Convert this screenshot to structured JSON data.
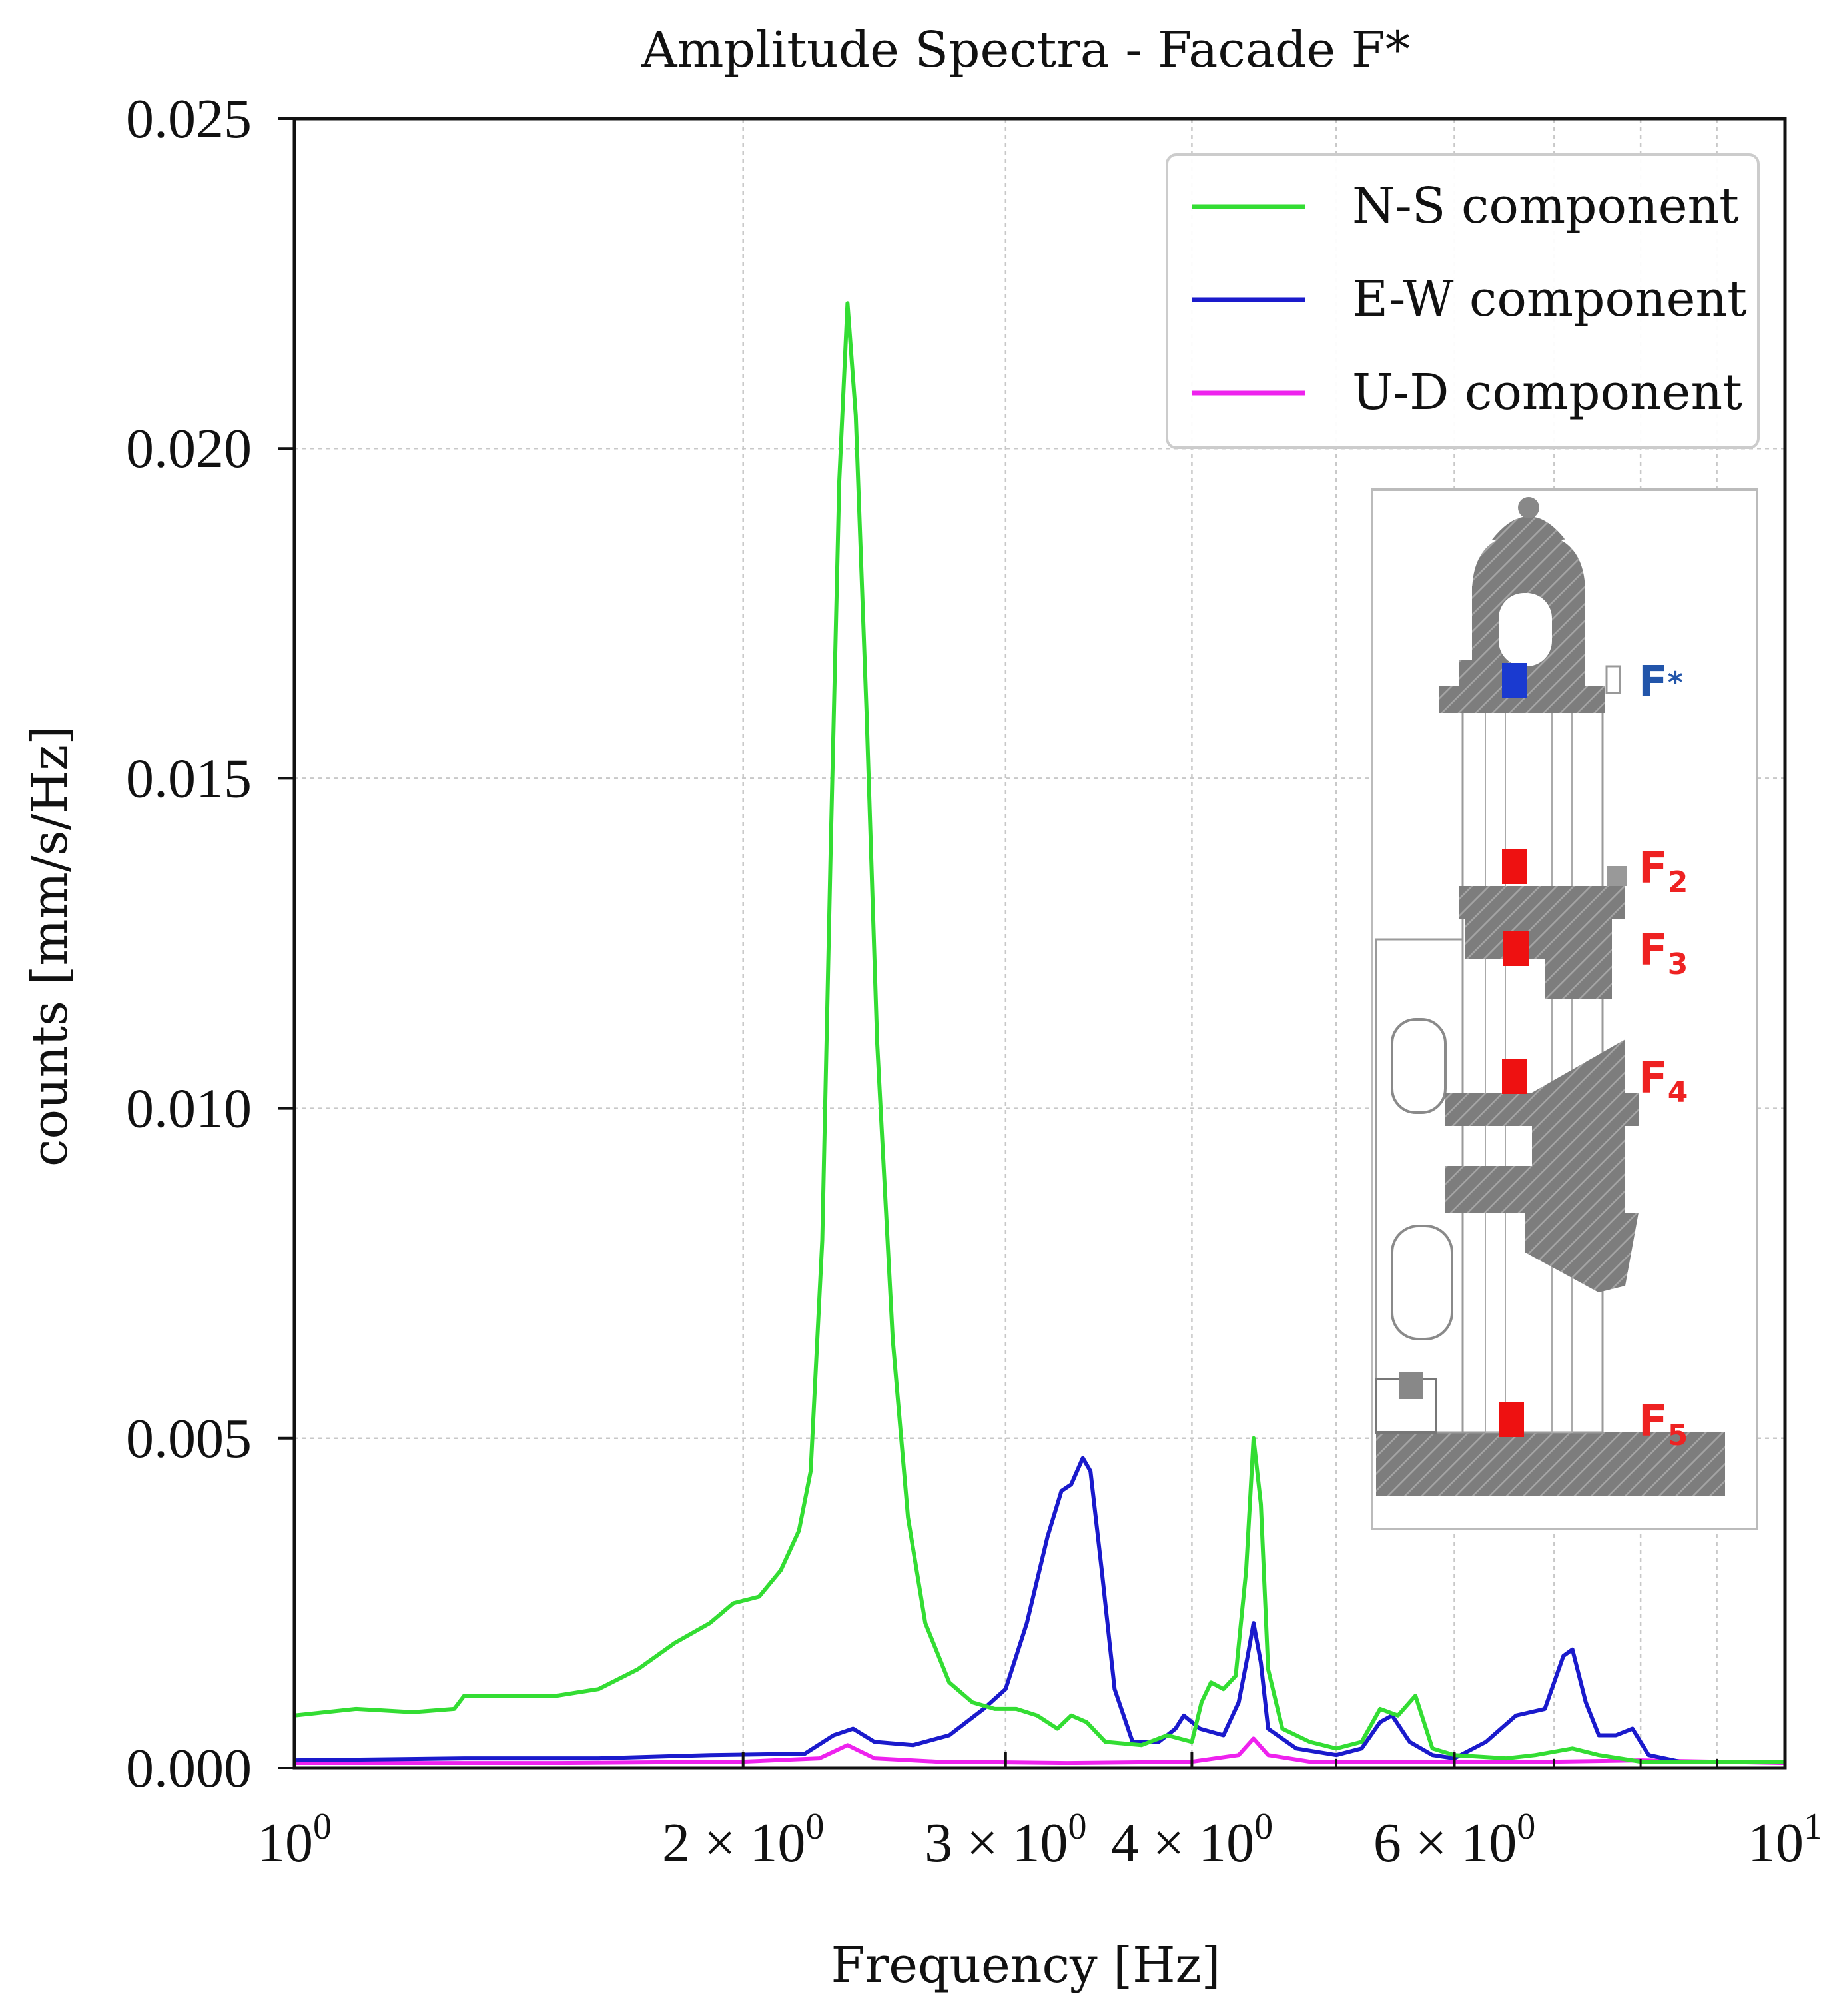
{
  "chart_data": {
    "type": "line",
    "title": "Amplitude Spectra - Facade F*",
    "xlabel": "Frequency [Hz]",
    "ylabel": "counts [mm/s/Hz]",
    "xscale": "log",
    "xlim": [
      1,
      10
    ],
    "ylim": [
      0,
      0.025
    ],
    "grid": true,
    "legend_position": "top-right",
    "x_ticks": [
      {
        "value": 1,
        "base": "10",
        "exp": "0",
        "mant": ""
      },
      {
        "value": 2,
        "base": "10",
        "exp": "0",
        "mant": "2 × "
      },
      {
        "value": 3,
        "base": "10",
        "exp": "0",
        "mant": "3 × "
      },
      {
        "value": 4,
        "base": "10",
        "exp": "0",
        "mant": "4 × "
      },
      {
        "value": 6,
        "base": "10",
        "exp": "0",
        "mant": "6 × "
      },
      {
        "value": 10,
        "base": "10",
        "exp": "1",
        "mant": ""
      }
    ],
    "x_minor_gridlines": [
      5,
      7,
      8,
      9
    ],
    "y_ticks": [
      {
        "value": 0.0,
        "label": "0.000"
      },
      {
        "value": 0.005,
        "label": "0.005"
      },
      {
        "value": 0.01,
        "label": "0.010"
      },
      {
        "value": 0.015,
        "label": "0.015"
      },
      {
        "value": 0.02,
        "label": "0.020"
      },
      {
        "value": 0.025,
        "label": "0.025"
      }
    ],
    "series": [
      {
        "name": "N-S component",
        "color": "#33dd33",
        "points": [
          [
            1.0,
            0.0008
          ],
          [
            1.1,
            0.0009
          ],
          [
            1.2,
            0.00085
          ],
          [
            1.28,
            0.0009
          ],
          [
            1.3,
            0.0011
          ],
          [
            1.4,
            0.0011
          ],
          [
            1.5,
            0.0011
          ],
          [
            1.6,
            0.0012
          ],
          [
            1.7,
            0.0015
          ],
          [
            1.8,
            0.0019
          ],
          [
            1.9,
            0.0022
          ],
          [
            1.97,
            0.0025
          ],
          [
            2.05,
            0.0026
          ],
          [
            2.12,
            0.003
          ],
          [
            2.18,
            0.0036
          ],
          [
            2.22,
            0.0045
          ],
          [
            2.26,
            0.008
          ],
          [
            2.29,
            0.014
          ],
          [
            2.32,
            0.0195
          ],
          [
            2.35,
            0.0222
          ],
          [
            2.38,
            0.0205
          ],
          [
            2.42,
            0.016
          ],
          [
            2.46,
            0.011
          ],
          [
            2.52,
            0.0065
          ],
          [
            2.58,
            0.0038
          ],
          [
            2.65,
            0.0022
          ],
          [
            2.75,
            0.0013
          ],
          [
            2.85,
            0.001
          ],
          [
            2.95,
            0.0009
          ],
          [
            3.05,
            0.0009
          ],
          [
            3.15,
            0.0008
          ],
          [
            3.25,
            0.0006
          ],
          [
            3.32,
            0.0008
          ],
          [
            3.4,
            0.0007
          ],
          [
            3.5,
            0.0004
          ],
          [
            3.7,
            0.00035
          ],
          [
            3.85,
            0.0005
          ],
          [
            4.0,
            0.0004
          ],
          [
            4.06,
            0.001
          ],
          [
            4.12,
            0.0013
          ],
          [
            4.2,
            0.0012
          ],
          [
            4.28,
            0.0014
          ],
          [
            4.35,
            0.003
          ],
          [
            4.4,
            0.005
          ],
          [
            4.45,
            0.004
          ],
          [
            4.5,
            0.0015
          ],
          [
            4.6,
            0.0006
          ],
          [
            4.8,
            0.0004
          ],
          [
            5.0,
            0.0003
          ],
          [
            5.2,
            0.0004
          ],
          [
            5.35,
            0.0009
          ],
          [
            5.5,
            0.0008
          ],
          [
            5.65,
            0.0011
          ],
          [
            5.8,
            0.0003
          ],
          [
            6.0,
            0.0002
          ],
          [
            6.5,
            0.00015
          ],
          [
            6.8,
            0.0002
          ],
          [
            7.2,
            0.0003
          ],
          [
            7.5,
            0.0002
          ],
          [
            8.0,
            0.0001
          ],
          [
            9.0,
            0.0001
          ],
          [
            10.0,
            0.0001
          ]
        ]
      },
      {
        "name": "E-W component",
        "color": "#1a1acc",
        "points": [
          [
            1.0,
            0.00012
          ],
          [
            1.3,
            0.00015
          ],
          [
            1.6,
            0.00015
          ],
          [
            1.9,
            0.0002
          ],
          [
            2.2,
            0.00022
          ],
          [
            2.3,
            0.0005
          ],
          [
            2.37,
            0.0006
          ],
          [
            2.45,
            0.0004
          ],
          [
            2.6,
            0.00035
          ],
          [
            2.75,
            0.0005
          ],
          [
            2.9,
            0.0009
          ],
          [
            3.0,
            0.0012
          ],
          [
            3.1,
            0.0022
          ],
          [
            3.2,
            0.0035
          ],
          [
            3.27,
            0.0042
          ],
          [
            3.32,
            0.0043
          ],
          [
            3.38,
            0.0047
          ],
          [
            3.42,
            0.0045
          ],
          [
            3.48,
            0.003
          ],
          [
            3.55,
            0.0012
          ],
          [
            3.65,
            0.0004
          ],
          [
            3.8,
            0.0004
          ],
          [
            3.9,
            0.0006
          ],
          [
            3.95,
            0.0008
          ],
          [
            4.05,
            0.0006
          ],
          [
            4.2,
            0.0005
          ],
          [
            4.3,
            0.001
          ],
          [
            4.36,
            0.0017
          ],
          [
            4.4,
            0.0022
          ],
          [
            4.45,
            0.0016
          ],
          [
            4.5,
            0.0006
          ],
          [
            4.7,
            0.0003
          ],
          [
            5.0,
            0.0002
          ],
          [
            5.2,
            0.0003
          ],
          [
            5.35,
            0.0007
          ],
          [
            5.45,
            0.0008
          ],
          [
            5.6,
            0.0004
          ],
          [
            5.8,
            0.0002
          ],
          [
            6.0,
            0.00015
          ],
          [
            6.3,
            0.0004
          ],
          [
            6.6,
            0.0008
          ],
          [
            6.9,
            0.0009
          ],
          [
            7.1,
            0.0017
          ],
          [
            7.2,
            0.0018
          ],
          [
            7.35,
            0.001
          ],
          [
            7.5,
            0.0005
          ],
          [
            7.7,
            0.0005
          ],
          [
            7.9,
            0.0006
          ],
          [
            8.1,
            0.0002
          ],
          [
            8.5,
            0.0001
          ],
          [
            10.0,
            0.0001
          ]
        ]
      },
      {
        "name": "U-D component",
        "color": "#ee22ee",
        "points": [
          [
            1.0,
            8e-05
          ],
          [
            1.5,
            8e-05
          ],
          [
            2.0,
            0.0001
          ],
          [
            2.25,
            0.00015
          ],
          [
            2.35,
            0.00035
          ],
          [
            2.45,
            0.00015
          ],
          [
            2.7,
            0.0001
          ],
          [
            3.3,
            8e-05
          ],
          [
            4.0,
            0.0001
          ],
          [
            4.3,
            0.0002
          ],
          [
            4.4,
            0.00045
          ],
          [
            4.5,
            0.0002
          ],
          [
            4.8,
            0.0001
          ],
          [
            5.5,
            0.0001
          ],
          [
            7.0,
            0.0001
          ],
          [
            8.0,
            0.00012
          ],
          [
            10.0,
            8e-05
          ]
        ]
      }
    ]
  },
  "inset": {
    "sensors": [
      {
        "base": "F",
        "sub": "*",
        "color": "#2255aa",
        "marker_color": "#1a3ad0"
      },
      {
        "base": "F",
        "sub": "2",
        "color": "#ee2222",
        "marker_color": "#ee1111"
      },
      {
        "base": "F",
        "sub": "3",
        "color": "#ee2222",
        "marker_color": "#ee1111"
      },
      {
        "base": "F",
        "sub": "4",
        "color": "#ee2222",
        "marker_color": "#ee1111"
      },
      {
        "base": "F",
        "sub": "5",
        "color": "#ee2222",
        "marker_color": "#ee1111"
      }
    ]
  }
}
